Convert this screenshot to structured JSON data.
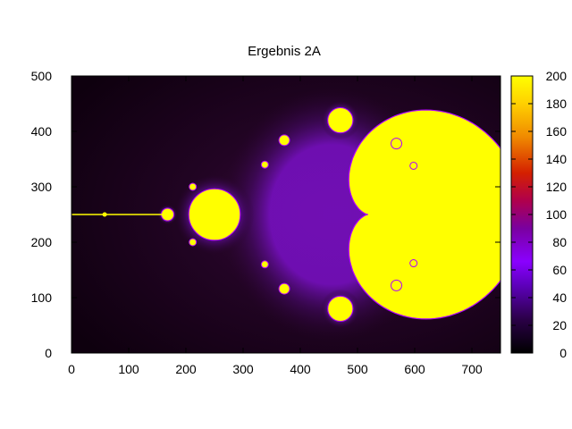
{
  "chart_data": {
    "type": "heatmap",
    "title": "Ergebnis 2A",
    "xlabel": "",
    "ylabel": "",
    "xlim": [
      0,
      750
    ],
    "ylim": [
      0,
      500
    ],
    "x_ticks": [
      "0",
      "100",
      "200",
      "300",
      "400",
      "500",
      "600",
      "700"
    ],
    "y_ticks": [
      "0",
      "100",
      "200",
      "300",
      "400",
      "500"
    ],
    "colorbar": {
      "range": [
        0,
        200
      ],
      "ticks": [
        "0",
        "20",
        "40",
        "60",
        "80",
        "100",
        "120",
        "140",
        "160",
        "180",
        "200"
      ],
      "palette": [
        "#000000",
        "#3a0060",
        "#8a00ff",
        "#b0004c",
        "#d42000",
        "#f08a00",
        "#ffff00"
      ]
    },
    "grid": false,
    "series": [
      {
        "description_free_regions": [
          {
            "shape": "cardioid",
            "center": [
              470,
              250
            ],
            "value": 200
          },
          {
            "shape": "disk",
            "center": [
              250,
              250
            ],
            "radius": 45,
            "value": 200
          },
          {
            "shape": "disk",
            "center": [
              168,
              250
            ],
            "radius": 11,
            "value": 200
          },
          {
            "shape": "disk",
            "center": [
              470,
              420
            ],
            "radius": 22,
            "value": 200
          },
          {
            "shape": "disk",
            "center": [
              470,
              80
            ],
            "radius": 22,
            "value": 200
          },
          {
            "shape": "line",
            "x": [
              0,
              160
            ],
            "y": 250,
            "value": 200
          }
        ]
      }
    ]
  }
}
